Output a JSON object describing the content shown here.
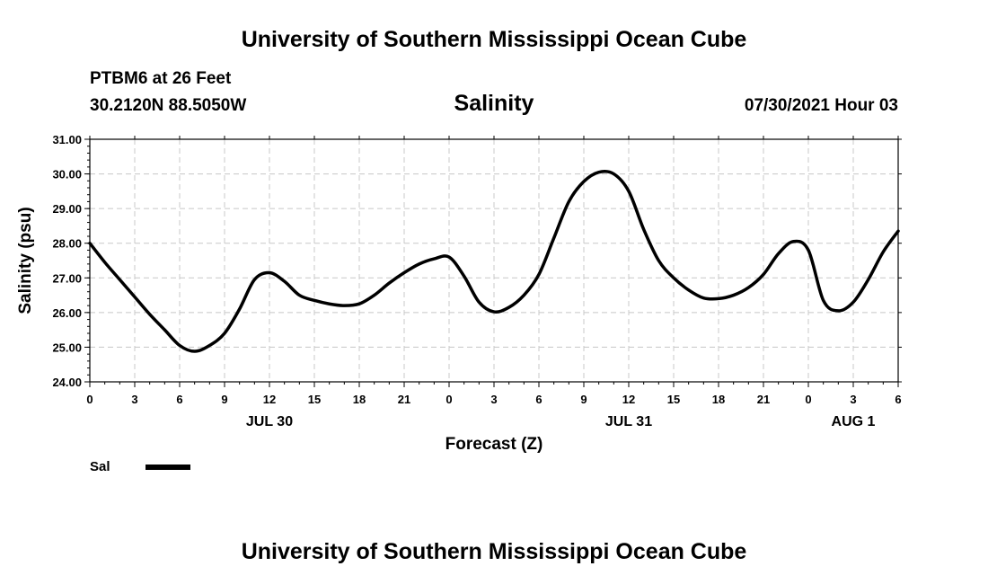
{
  "header": {
    "title": "University of Southern Mississippi Ocean Cube",
    "station": "PTBM6 at 26 Feet",
    "coordinates": "30.2120N  88.5050W",
    "datetime": "07/30/2021 Hour 03"
  },
  "footer": {
    "title": "University of Southern Mississippi Ocean Cube"
  },
  "legend": {
    "label": "Sal",
    "color": "#000000"
  },
  "chart_data": {
    "type": "line",
    "title": "Salinity",
    "xlabel": "Forecast (Z)",
    "ylabel": "Salinity (psu)",
    "xlim": [
      0,
      54
    ],
    "ylim": [
      24,
      31
    ],
    "grid": true,
    "yticks": [
      24,
      25,
      26,
      27,
      28,
      29,
      30,
      31
    ],
    "ytick_labels": [
      "24.00",
      "25.00",
      "26.00",
      "27.00",
      "28.00",
      "29.00",
      "30.00",
      "31.00"
    ],
    "xticks": [
      0,
      3,
      6,
      9,
      12,
      15,
      18,
      21,
      24,
      27,
      30,
      33,
      36,
      39,
      42,
      45,
      48,
      51,
      54
    ],
    "xtick_labels": [
      "0",
      "3",
      "6",
      "9",
      "12",
      "15",
      "18",
      "21",
      "0",
      "3",
      "6",
      "9",
      "12",
      "15",
      "18",
      "21",
      "0",
      "3",
      "6"
    ],
    "date_labels": [
      {
        "x": 12,
        "label": "JUL 30"
      },
      {
        "x": 36,
        "label": "JUL 31"
      },
      {
        "x": 51,
        "label": "AUG 1"
      }
    ],
    "series": [
      {
        "name": "Sal",
        "color": "#000000",
        "x": [
          0,
          1,
          2,
          3,
          4,
          5,
          6,
          7,
          8,
          9,
          10,
          11,
          12,
          13,
          14,
          15,
          16,
          17,
          18,
          19,
          20,
          21,
          22,
          23,
          24,
          25,
          26,
          27,
          28,
          29,
          30,
          31,
          32,
          33,
          34,
          35,
          36,
          37,
          38,
          39,
          40,
          41,
          42,
          43,
          44,
          45,
          46,
          47,
          48,
          49,
          50,
          51,
          52,
          53,
          54
        ],
        "values": [
          28.0,
          27.45,
          26.95,
          26.45,
          25.95,
          25.5,
          25.05,
          24.88,
          25.05,
          25.4,
          26.1,
          26.95,
          27.15,
          26.9,
          26.5,
          26.35,
          26.25,
          26.2,
          26.25,
          26.5,
          26.85,
          27.15,
          27.4,
          27.55,
          27.6,
          27.05,
          26.3,
          26.02,
          26.15,
          26.5,
          27.1,
          28.15,
          29.2,
          29.78,
          30.05,
          30.0,
          29.5,
          28.4,
          27.5,
          27.0,
          26.65,
          26.42,
          26.4,
          26.5,
          26.72,
          27.1,
          27.7,
          28.05,
          27.8,
          26.35,
          26.05,
          26.3,
          26.95,
          27.75,
          28.35
        ]
      }
    ]
  }
}
